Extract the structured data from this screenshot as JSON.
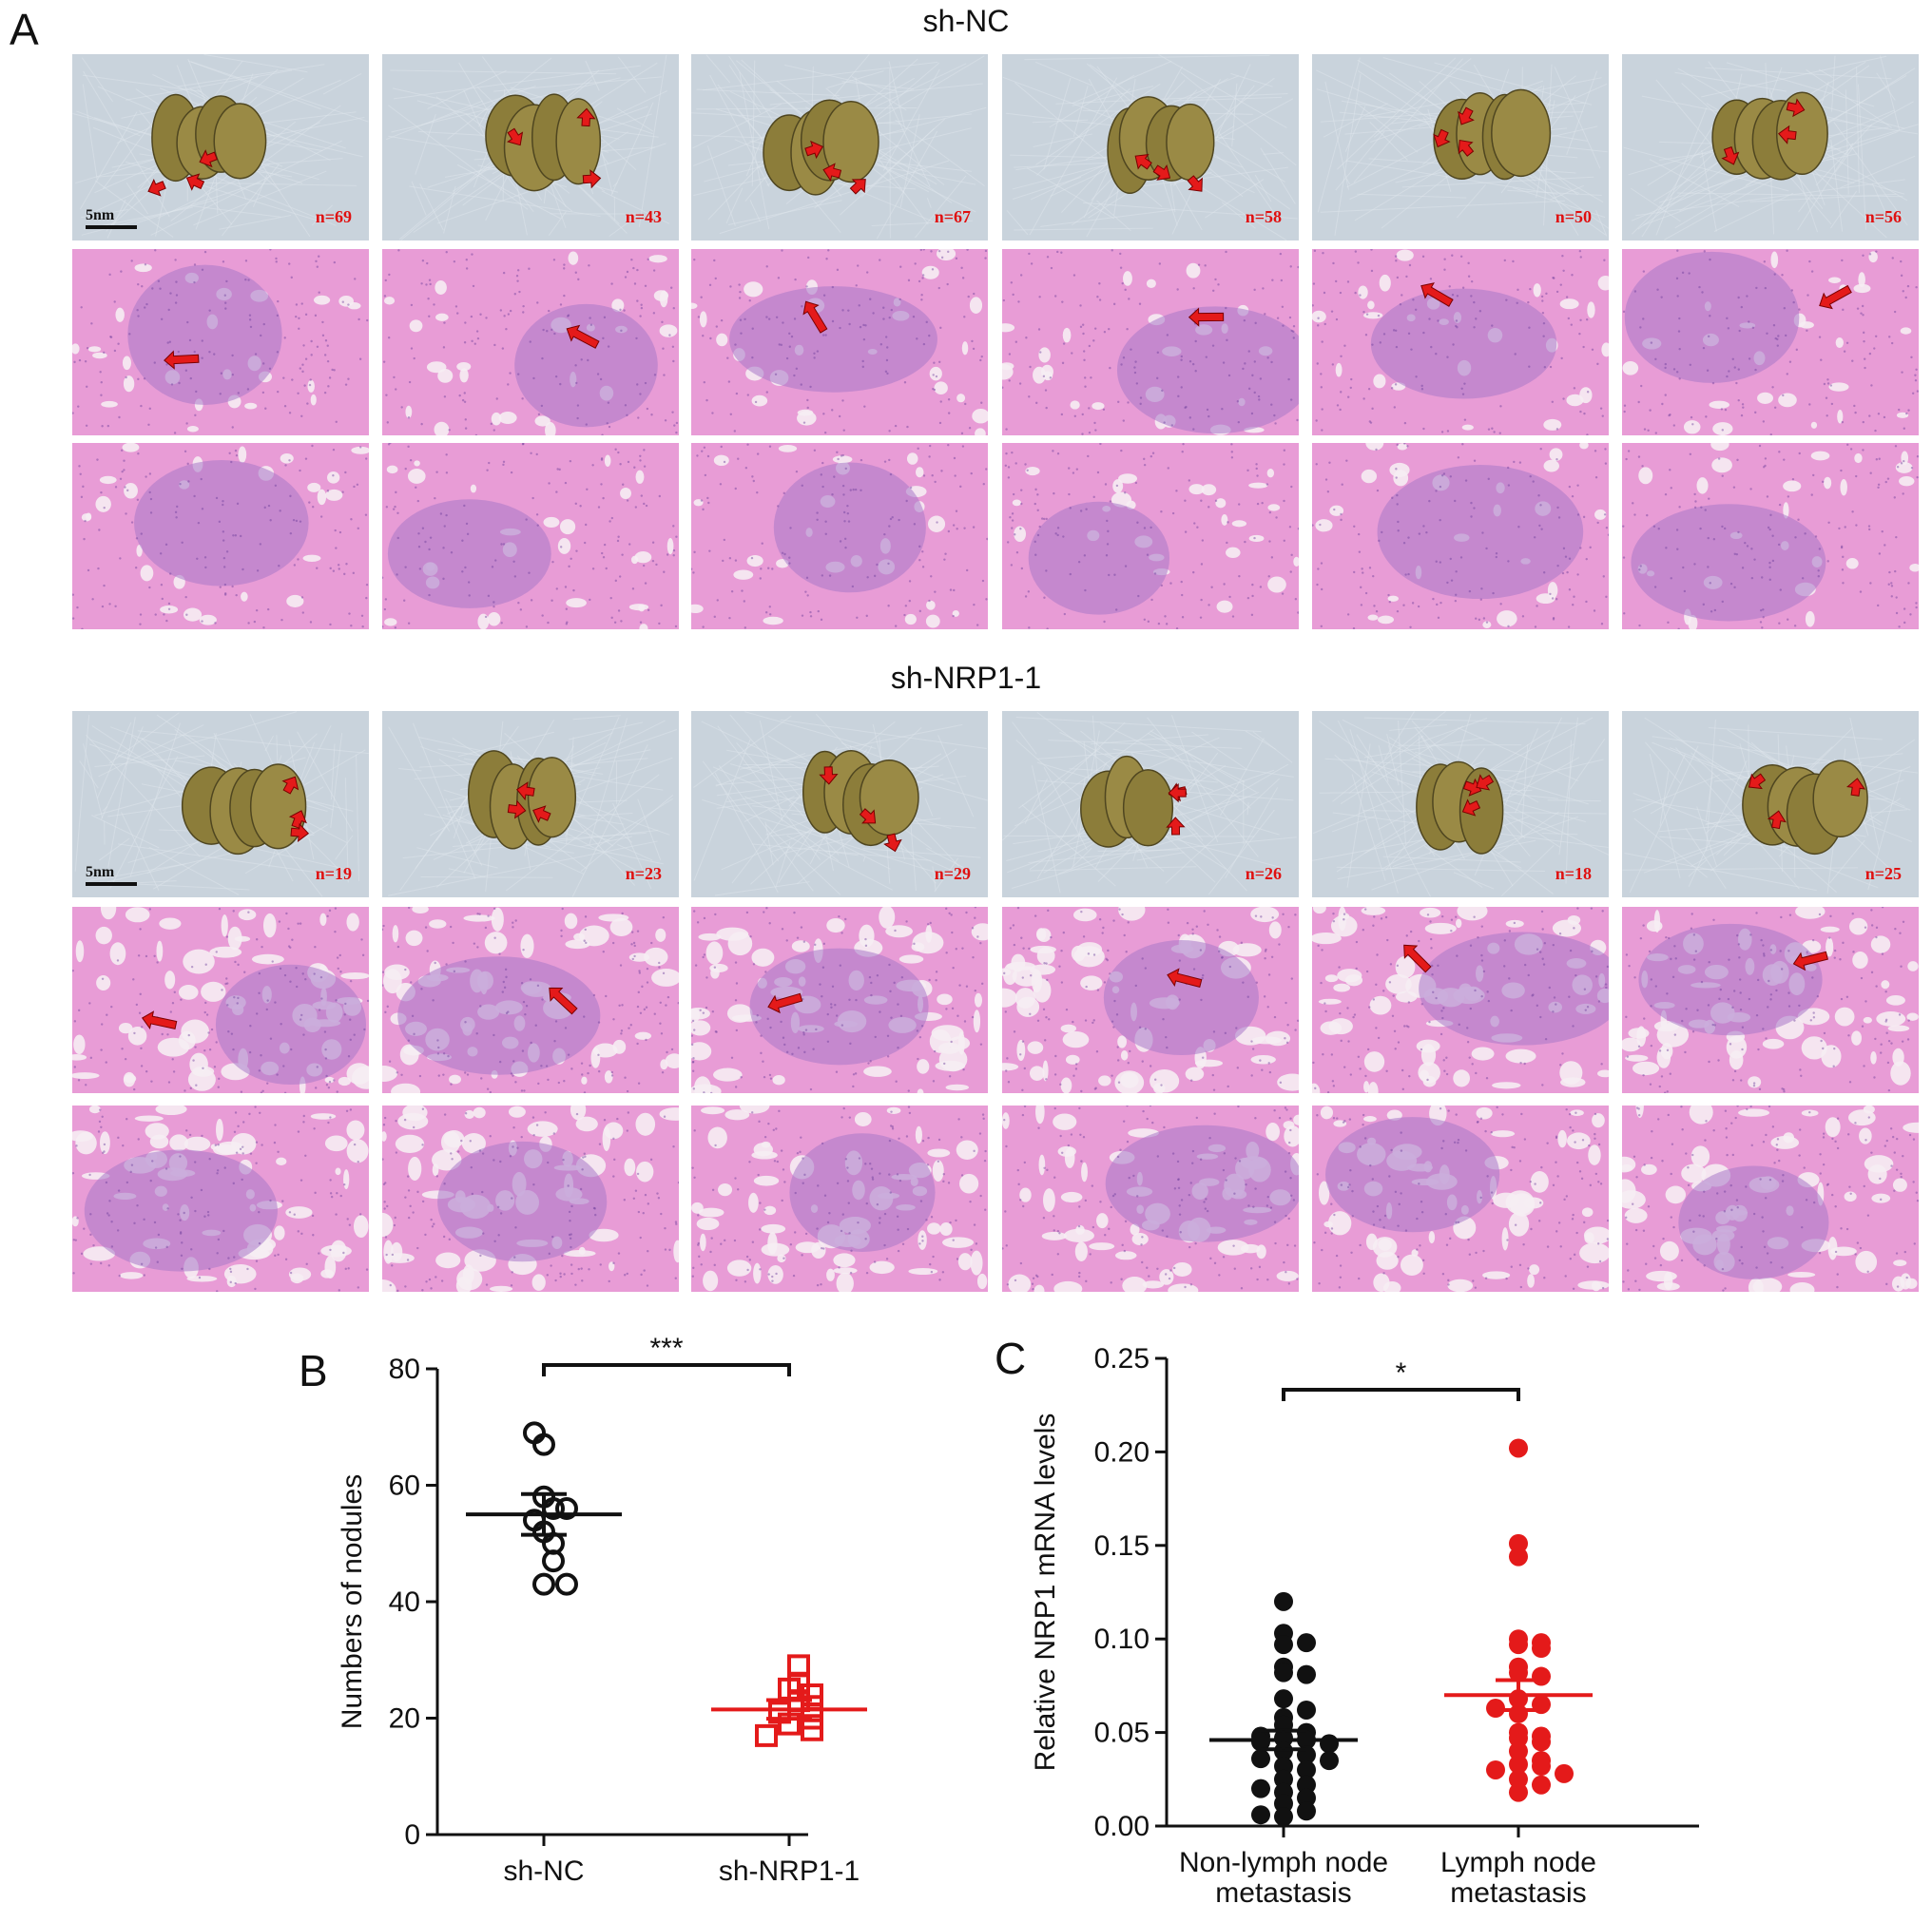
{
  "panel_a": {
    "letter": "A",
    "scale_label": "5nm",
    "groups": [
      {
        "title": "sh-NC",
        "counts": [
          "n=69",
          "n=43",
          "n=67",
          "n=58",
          "n=50",
          "n=56"
        ]
      },
      {
        "title": "sh-NRP1-1",
        "counts": [
          "n=19",
          "n=23",
          "n=29",
          "n=26",
          "n=18",
          "n=25"
        ]
      }
    ]
  },
  "colors": {
    "marker_red": "#e41a1a",
    "he_stain_pink": "#e89cd6",
    "he_stain_purple": "#a878c8",
    "paper_bg": "#c9d3dc",
    "lung": "#8c7d3a"
  },
  "chart_data": [
    {
      "panel": "B",
      "type": "scatter",
      "title": "",
      "xlabel": "",
      "ylabel": "Numbers of nodules",
      "categories": [
        "sh-NC",
        "sh-NRP1-1"
      ],
      "ylim": [
        0,
        80
      ],
      "yticks": [
        "0",
        "20",
        "40",
        "60",
        "80"
      ],
      "series": [
        {
          "values": [
            69,
            67,
            58,
            56,
            54,
            50,
            47,
            43,
            43,
            56,
            52
          ],
          "mean": 55,
          "sem": 3.5,
          "marker": "open-circle",
          "color": "#111111"
        },
        {
          "values": [
            29,
            26,
            25,
            24,
            23,
            22,
            19,
            18,
            17,
            21,
            20
          ],
          "mean": 21.5,
          "sem": 1.6,
          "marker": "open-square",
          "color": "#e41a1a"
        }
      ],
      "significance": "***"
    },
    {
      "panel": "C",
      "type": "scatter",
      "title": "",
      "xlabel": "",
      "ylabel": "Relative NRP1 mRNA levels",
      "categories": [
        "Non-lymph node metastasis",
        "Lymph node metastasis"
      ],
      "ylim": [
        0,
        0.25
      ],
      "yticks": [
        "0.00",
        "0.05",
        "0.10",
        "0.15",
        "0.20",
        "0.25"
      ],
      "series": [
        {
          "values": [
            0.12,
            0.103,
            0.098,
            0.097,
            0.085,
            0.082,
            0.081,
            0.068,
            0.062,
            0.058,
            0.054,
            0.05,
            0.048,
            0.047,
            0.046,
            0.045,
            0.044,
            0.04,
            0.038,
            0.036,
            0.035,
            0.032,
            0.03,
            0.025,
            0.022,
            0.02,
            0.018,
            0.015,
            0.012,
            0.008,
            0.006,
            0.005
          ],
          "mean": 0.046,
          "sem": 0.005,
          "marker": "filled-circle",
          "color": "#111111"
        },
        {
          "values": [
            0.202,
            0.151,
            0.144,
            0.1,
            0.098,
            0.097,
            0.095,
            0.085,
            0.082,
            0.08,
            0.068,
            0.065,
            0.063,
            0.06,
            0.05,
            0.048,
            0.047,
            0.045,
            0.04,
            0.035,
            0.033,
            0.032,
            0.03,
            0.028,
            0.025,
            0.022,
            0.018
          ],
          "mean": 0.07,
          "sem": 0.008,
          "marker": "filled-circle",
          "color": "#e41a1a"
        }
      ],
      "significance": "*"
    }
  ]
}
